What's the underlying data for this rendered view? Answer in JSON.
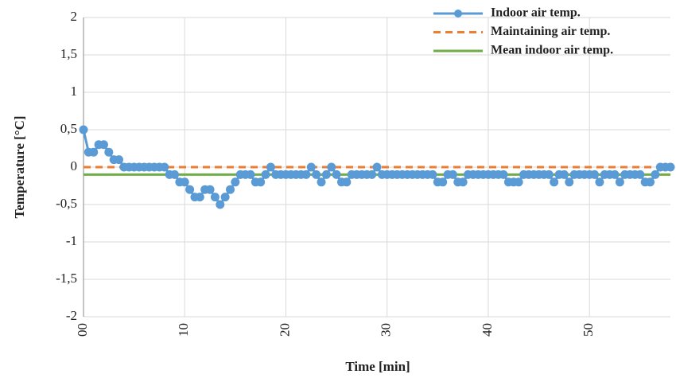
{
  "chart_data": {
    "type": "line",
    "xlabel": "Time [min]",
    "ylabel": "Temperature  [°C]",
    "xlim": [
      0,
      58
    ],
    "ylim": [
      -2,
      2
    ],
    "xticks": [
      {
        "value": 0,
        "label": "00"
      },
      10,
      20,
      30,
      40,
      50
    ],
    "yticks": [
      -2,
      {
        "value": -1.5,
        "label": "-1,5"
      },
      -1,
      {
        "value": -0.5,
        "label": "-0,5"
      },
      0,
      {
        "value": 0.5,
        "label": "0,5"
      },
      1,
      {
        "value": 1.5,
        "label": "1,5"
      },
      2
    ],
    "grid": true,
    "legend": "upper right",
    "series": [
      {
        "name": "Indoor air temp.",
        "color": "#5b9bd5",
        "marker": true,
        "dash": false,
        "x": [
          0,
          0.5,
          1,
          1.5,
          2,
          2.5,
          3,
          3.5,
          4,
          4.5,
          5,
          5.5,
          6,
          6.5,
          7,
          7.5,
          8,
          8.5,
          9,
          9.5,
          10,
          10.5,
          11,
          11.5,
          12,
          12.5,
          13,
          13.5,
          14,
          14.5,
          15,
          15.5,
          16,
          16.5,
          17,
          17.5,
          18,
          18.5,
          19,
          19.5,
          20,
          20.5,
          21,
          21.5,
          22,
          22.5,
          23,
          23.5,
          24,
          24.5,
          25,
          25.5,
          26,
          26.5,
          27,
          27.5,
          28,
          28.5,
          29,
          29.5,
          30,
          30.5,
          31,
          31.5,
          32,
          32.5,
          33,
          33.5,
          34,
          34.5,
          35,
          35.5,
          36,
          36.5,
          37,
          37.5,
          38,
          38.5,
          39,
          39.5,
          40,
          40.5,
          41,
          41.5,
          42,
          42.5,
          43,
          43.5,
          44,
          44.5,
          45,
          45.5,
          46,
          46.5,
          47,
          47.5,
          48,
          48.5,
          49,
          49.5,
          50,
          50.5,
          51,
          51.5,
          52,
          52.5,
          53,
          53.5,
          54,
          54.5,
          55,
          55.5,
          56,
          56.5,
          57,
          57.5,
          58
        ],
        "values": [
          0.5,
          0.2,
          0.2,
          0.3,
          0.3,
          0.2,
          0.1,
          0.1,
          0,
          0,
          0,
          0,
          0,
          0,
          0,
          0,
          0,
          -0.1,
          -0.1,
          -0.2,
          -0.2,
          -0.3,
          -0.4,
          -0.4,
          -0.3,
          -0.3,
          -0.4,
          -0.5,
          -0.4,
          -0.3,
          -0.2,
          -0.1,
          -0.1,
          -0.1,
          -0.2,
          -0.2,
          -0.1,
          0,
          -0.1,
          -0.1,
          -0.1,
          -0.1,
          -0.1,
          -0.1,
          -0.1,
          0,
          -0.1,
          -0.2,
          -0.1,
          0,
          -0.1,
          -0.2,
          -0.2,
          -0.1,
          -0.1,
          -0.1,
          -0.1,
          -0.1,
          0,
          -0.1,
          -0.1,
          -0.1,
          -0.1,
          -0.1,
          -0.1,
          -0.1,
          -0.1,
          -0.1,
          -0.1,
          -0.1,
          -0.2,
          -0.2,
          -0.1,
          -0.1,
          -0.2,
          -0.2,
          -0.1,
          -0.1,
          -0.1,
          -0.1,
          -0.1,
          -0.1,
          -0.1,
          -0.1,
          -0.2,
          -0.2,
          -0.2,
          -0.1,
          -0.1,
          -0.1,
          -0.1,
          -0.1,
          -0.1,
          -0.2,
          -0.1,
          -0.1,
          -0.2,
          -0.1,
          -0.1,
          -0.1,
          -0.1,
          -0.1,
          -0.2,
          -0.1,
          -0.1,
          -0.1,
          -0.2,
          -0.1,
          -0.1,
          -0.1,
          -0.1,
          -0.2,
          -0.2,
          -0.1,
          0,
          0,
          0
        ]
      },
      {
        "name": "Maintaining air temp.",
        "color": "#ed7d31",
        "marker": false,
        "dash": true,
        "x": [
          0,
          58
        ],
        "values": [
          0,
          0
        ]
      },
      {
        "name": "Mean indoor air temp.",
        "color": "#70ad47",
        "marker": false,
        "dash": false,
        "x": [
          0,
          58
        ],
        "values": [
          -0.1,
          -0.1
        ]
      }
    ]
  }
}
